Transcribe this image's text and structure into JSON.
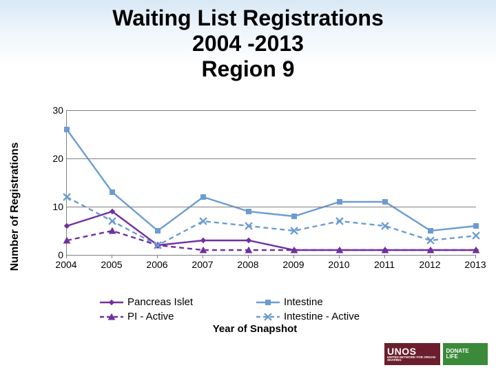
{
  "title_line1": "Waiting List Registrations",
  "title_line2": "2004 -2013",
  "title_line3": "Region 9",
  "chart": {
    "type": "line",
    "y_label": "Number of Registrations",
    "x_label": "Year of Snapshot",
    "background_color": "#ffffff",
    "axis_color": "#808080",
    "grid_color": "#808080",
    "label_fontsize": 16,
    "tick_fontsize": 14,
    "ylim": [
      0,
      30
    ],
    "ytick_step": 10,
    "categories": [
      "2004",
      "2005",
      "2006",
      "2007",
      "2008",
      "2009",
      "2010",
      "2011",
      "2012",
      "2013"
    ],
    "series": [
      {
        "name": "Pancreas Islet",
        "color": "#7030a0",
        "dash": "solid",
        "line_width": 2.4,
        "marker": "diamond",
        "marker_size": 8,
        "values": [
          6,
          9,
          2,
          3,
          3,
          1,
          1,
          1,
          1,
          1
        ]
      },
      {
        "name": "Intestine",
        "color": "#6b9cd1",
        "dash": "solid",
        "line_width": 2.4,
        "marker": "square",
        "marker_size": 8,
        "values": [
          26,
          13,
          5,
          12,
          9,
          8,
          11,
          11,
          5,
          6
        ]
      },
      {
        "name": "PI - Active",
        "color": "#7030a0",
        "dash": "dashed",
        "line_width": 2.4,
        "marker": "triangle",
        "marker_size": 9,
        "values": [
          3,
          5,
          2,
          1,
          1,
          1,
          1,
          1,
          1,
          1
        ]
      },
      {
        "name": "Intestine - Active",
        "color": "#6b9cd1",
        "dash": "dashed",
        "line_width": 2.4,
        "marker": "x",
        "marker_size": 9,
        "values": [
          12,
          7,
          2,
          7,
          6,
          5,
          7,
          6,
          3,
          4
        ]
      }
    ]
  },
  "legend": {
    "items": [
      "Pancreas Islet",
      "Intestine",
      "PI - Active",
      "Intestine - Active"
    ]
  },
  "footer": {
    "unos_big": "UNOS",
    "unos_small": "UNITED NETWORK FOR ORGAN SHARING",
    "donate": "DONATE",
    "life": "LIFE"
  }
}
